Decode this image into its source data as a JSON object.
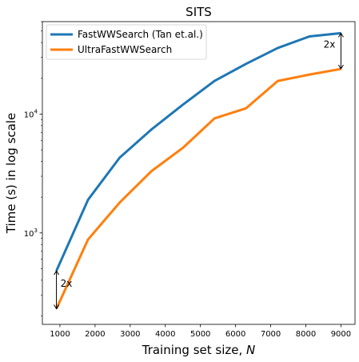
{
  "chart_data": {
    "type": "line",
    "title": "SITS",
    "xlabel": "Training set size, N",
    "xlabel_parts": {
      "text": "Training set size, ",
      "italic": "N"
    },
    "ylabel": "Time (s) in log scale",
    "y_scale": "log",
    "xlim": [
      500,
      9400
    ],
    "ylim": [
      170,
      60000
    ],
    "x_ticks": [
      1000,
      2000,
      3000,
      4000,
      5000,
      6000,
      7000,
      8000,
      9000
    ],
    "y_major_ticks": [
      {
        "value": 1000,
        "base": "10",
        "exp": "3"
      },
      {
        "value": 10000,
        "base": "10",
        "exp": "4"
      }
    ],
    "grid": false,
    "legend_position": "top-left",
    "x": [
      900,
      1800,
      2700,
      3600,
      4500,
      5400,
      6300,
      7200,
      8100,
      9000
    ],
    "series": [
      {
        "name": "FastWWSearch (Tan et.al.)",
        "color": "#1f77b4",
        "values": [
          480,
          1900,
          4300,
          7400,
          12000,
          19000,
          26500,
          36000,
          45000,
          48000
        ]
      },
      {
        "name": "UltraFastWWSearch",
        "color": "#ff7f0e",
        "values": [
          230,
          880,
          1800,
          3300,
          5200,
          9200,
          11200,
          19000,
          21500,
          24000
        ]
      }
    ],
    "annotations": [
      {
        "text": "2x",
        "x": 900,
        "y_from": 230,
        "y_to": 480,
        "label_side": "right"
      },
      {
        "text": "2x",
        "x": 9000,
        "y_from": 24000,
        "y_to": 48000,
        "label_side": "left"
      }
    ]
  }
}
